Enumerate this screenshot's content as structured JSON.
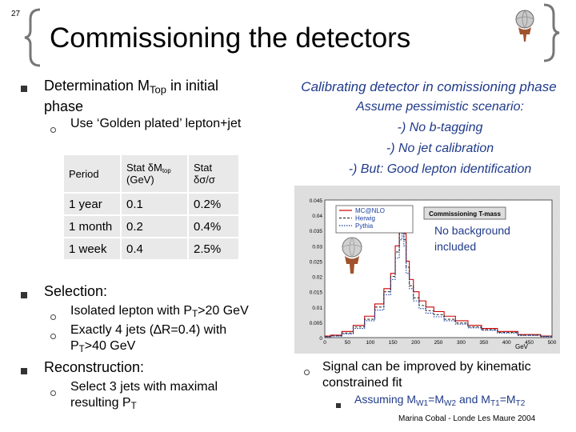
{
  "slide_number": "27",
  "title": "Commissioning the detectors",
  "left": {
    "bullet1": {
      "pre": "Determination M",
      "sub": "Top",
      "post": " in initial",
      "line2": "phase"
    },
    "bullet1_sub": "Use ‘Golden plated’ lepton+jet",
    "table": {
      "headers": [
        "Period",
        "Stat δM",
        "top",
        "(GeV)",
        "Stat",
        "δσ/σ"
      ],
      "rows": [
        [
          "1 year",
          "0.1",
          "0.2%"
        ],
        [
          "1 month",
          "0.2",
          "0.4%"
        ],
        [
          "1 week",
          "0.4",
          "2.5%"
        ]
      ]
    },
    "selection": {
      "label": "Selection:",
      "item1": {
        "pre": "Isolated lepton with P",
        "sub": "T",
        "post": ">20 GeV"
      },
      "item2": {
        "line1": "Exactly 4 jets (∆R=0.4) with",
        "pre": "P",
        "sub": "T",
        "post": ">40 GeV"
      }
    },
    "reconstruction": {
      "label": "Reconstruction:",
      "item1": {
        "line1": "Select 3 jets with maximal",
        "pre": "resulting P",
        "sub": "T"
      }
    }
  },
  "right": {
    "heading": "Calibrating detector in comissioning phase",
    "lines": [
      "Assume pessimistic scenario:",
      "-) No b-tagging",
      "-) No jet calibration",
      "-) But: Good lepton identification"
    ],
    "plot_note": "No background included",
    "signal": {
      "line1": "Signal can be improved by kinematic",
      "line2": "constrained fit"
    },
    "assuming": {
      "p1": "Assuming M",
      "s1": "W1",
      "p2": "=M",
      "s2": "W2",
      "p3": " and M",
      "s3": "T1",
      "p4": "=M",
      "s4": "T2"
    }
  },
  "footer": "Marina Cobal -  Londe Les Maure 2004",
  "chart_data": {
    "type": "line",
    "title": "Commissioning T-mass",
    "xlabel": "GeV",
    "ylabel": "",
    "ylim": [
      0,
      0.045
    ],
    "xlim": [
      0,
      500
    ],
    "y_ticks": [
      "0.045",
      "0.04",
      "0.035",
      "0.03",
      "0.025",
      "0.02",
      "0.015",
      "0.01",
      "0.005",
      "0"
    ],
    "x_ticks": [
      "0",
      "50",
      "100",
      "150",
      "200",
      "250",
      "300",
      "350",
      "400",
      "450",
      "500"
    ],
    "legend": {
      "placement": "top-left",
      "entries": [
        "MC@NLO",
        "Herwig",
        "Pythia"
      ]
    },
    "x": [
      0,
      25,
      50,
      75,
      100,
      120,
      140,
      150,
      160,
      168,
      172,
      176,
      182,
      190,
      200,
      215,
      230,
      250,
      275,
      300,
      330,
      360,
      400,
      450,
      500
    ],
    "series": [
      {
        "name": "MC@NLO",
        "values": [
          0.0005,
          0.0008,
          0.002,
          0.004,
          0.007,
          0.011,
          0.016,
          0.021,
          0.03,
          0.036,
          0.0385,
          0.034,
          0.025,
          0.019,
          0.015,
          0.012,
          0.01,
          0.0085,
          0.007,
          0.0055,
          0.004,
          0.003,
          0.002,
          0.001,
          0.0005
        ]
      },
      {
        "name": "Herwig",
        "values": [
          0.0003,
          0.0006,
          0.0015,
          0.0035,
          0.006,
          0.01,
          0.015,
          0.02,
          0.028,
          0.034,
          0.036,
          0.032,
          0.023,
          0.017,
          0.013,
          0.0105,
          0.0088,
          0.0075,
          0.006,
          0.0048,
          0.0035,
          0.0026,
          0.0017,
          0.0008,
          0.0004
        ]
      },
      {
        "name": "Pythia",
        "values": [
          0.0002,
          0.0005,
          0.0012,
          0.003,
          0.0055,
          0.009,
          0.014,
          0.019,
          0.026,
          0.032,
          0.034,
          0.03,
          0.021,
          0.016,
          0.012,
          0.0095,
          0.008,
          0.0068,
          0.0055,
          0.0044,
          0.0032,
          0.0024,
          0.0015,
          0.0007,
          0.0003
        ]
      }
    ],
    "colors": {
      "MC@NLO": "#cc0000",
      "Herwig": "#333333",
      "Pythia": "#1a3fa0"
    }
  }
}
